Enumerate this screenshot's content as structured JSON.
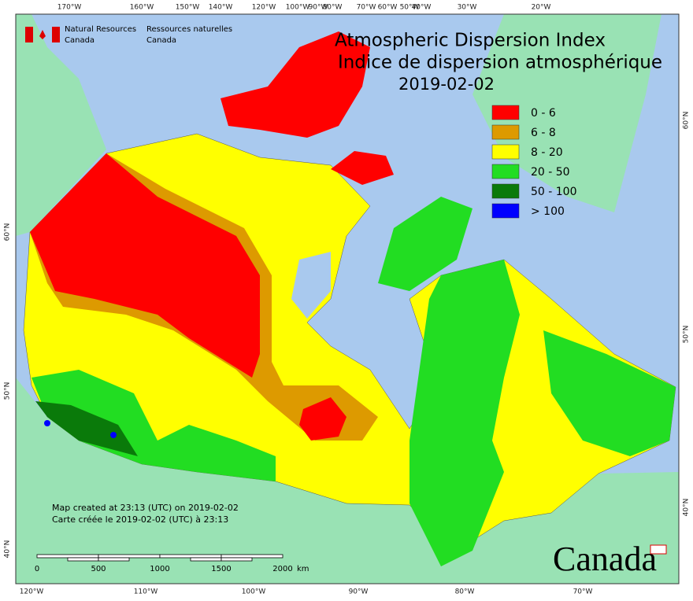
{
  "header": {
    "agency_en": "Natural Resources",
    "agency_en_2": "Canada",
    "agency_fr": "Ressources naturelles",
    "agency_fr_2": "Canada"
  },
  "title": {
    "line1": "Atmospheric Dispersion Index",
    "line2": "Indice de dispersion atmosphérique",
    "date": "2019-02-02"
  },
  "legend": [
    {
      "label": "0 - 6",
      "color": "#ff0000"
    },
    {
      "label": "6 - 8",
      "color": "#dd9a00"
    },
    {
      "label": "8 - 20",
      "color": "#ffff00"
    },
    {
      "label": "20 - 50",
      "color": "#22dd22"
    },
    {
      "label": "50 - 100",
      "color": "#0a7a0a"
    },
    {
      "label": "> 100",
      "color": "#0000ff"
    }
  ],
  "graticule": {
    "top": [
      "170°W",
      "160°W",
      "150°W",
      "140°W",
      "120°W",
      "100°W",
      "90°W",
      "80°W",
      "70°W",
      "60°W",
      "50°W",
      "40°W",
      "30°W",
      "20°W"
    ],
    "bottom": [
      "120°W",
      "110°W",
      "100°W",
      "90°W",
      "80°W",
      "70°W"
    ],
    "left": [
      "60°N",
      "50°N",
      "40°N"
    ],
    "right": [
      "60°N",
      "50°N",
      "40°N"
    ]
  },
  "footer": {
    "line1": "Map created at 23:13 (UTC) on 2019-02-02",
    "line2": "Carte créée le 2019-02-02 (UTC) à 23:13"
  },
  "scale_bar": [
    "0",
    "500",
    "1000",
    "1500",
    "2000",
    "km"
  ],
  "wordmark": "Canada"
}
